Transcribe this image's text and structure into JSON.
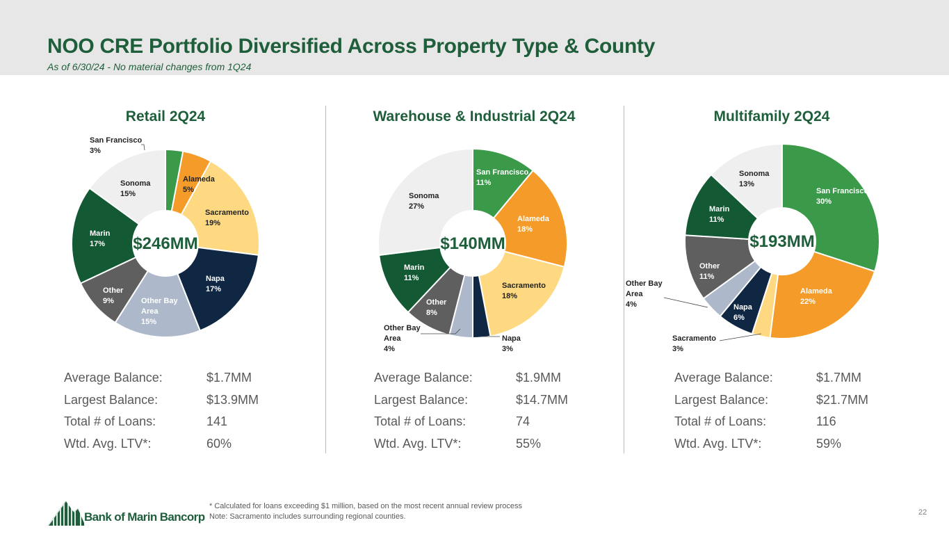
{
  "header": {
    "title": "NOO CRE Portfolio Diversified Across Property Type & County",
    "subtitle": "As of 6/30/24 - No material changes from 1Q24"
  },
  "colors": {
    "San Francisco": "#3a9a49",
    "Alameda": "#f59b29",
    "Sacramento": "#fed982",
    "Napa": "#0f2743",
    "Other Bay Area": "#adb9ca",
    "Other": "#5f5f5f",
    "Marin": "#135a34",
    "Sonoma": "#efefef",
    "title_green": "#1e5e3a"
  },
  "chart_data": [
    {
      "type": "pie",
      "title": "Retail 2Q24",
      "center_label": "$246MM",
      "slices": [
        {
          "name": "San Francisco",
          "value": 3,
          "label": "3%"
        },
        {
          "name": "Alameda",
          "value": 5,
          "label": "5%"
        },
        {
          "name": "Sacramento",
          "value": 19,
          "label": "19%"
        },
        {
          "name": "Napa",
          "value": 17,
          "label": "17%"
        },
        {
          "name": "Other Bay Area",
          "value": 15,
          "label": "15%"
        },
        {
          "name": "Other",
          "value": 9,
          "label": "9%"
        },
        {
          "name": "Marin",
          "value": 17,
          "label": "17%"
        },
        {
          "name": "Sonoma",
          "value": 15,
          "label": "15%"
        }
      ]
    },
    {
      "type": "pie",
      "title": "Warehouse & Industrial 2Q24",
      "center_label": "$140MM",
      "slices": [
        {
          "name": "San Francisco",
          "value": 11,
          "label": "11%"
        },
        {
          "name": "Alameda",
          "value": 18,
          "label": "18%"
        },
        {
          "name": "Sacramento",
          "value": 18,
          "label": "18%"
        },
        {
          "name": "Napa",
          "value": 3,
          "label": "3%"
        },
        {
          "name": "Other Bay Area",
          "value": 4,
          "label": "4%"
        },
        {
          "name": "Other",
          "value": 8,
          "label": "8%"
        },
        {
          "name": "Marin",
          "value": 11,
          "label": "11%"
        },
        {
          "name": "Sonoma",
          "value": 27,
          "label": "27%"
        }
      ]
    },
    {
      "type": "pie",
      "title": "Multifamily 2Q24",
      "center_label": "$193MM",
      "slices": [
        {
          "name": "San Francisco",
          "value": 30,
          "label": "30%"
        },
        {
          "name": "Alameda",
          "value": 22,
          "label": "22%"
        },
        {
          "name": "Sacramento",
          "value": 3,
          "label": "3%"
        },
        {
          "name": "Napa",
          "value": 6,
          "label": "6%"
        },
        {
          "name": "Other Bay Area",
          "value": 4,
          "label": "4%"
        },
        {
          "name": "Other",
          "value": 11,
          "label": "11%"
        },
        {
          "name": "Marin",
          "value": 11,
          "label": "11%"
        },
        {
          "name": "Sonoma",
          "value": 13,
          "label": "13%"
        }
      ]
    }
  ],
  "stats": [
    {
      "labels": [
        "Average Balance:",
        "Largest Balance:",
        "Total # of Loans:",
        "Wtd. Avg. LTV*:"
      ],
      "values": [
        "$1.7MM",
        "$13.9MM",
        "141",
        "60%"
      ]
    },
    {
      "labels": [
        "Average Balance:",
        "Largest Balance:",
        "Total # of Loans:",
        "Wtd. Avg. LTV*:"
      ],
      "values": [
        "$1.9MM",
        "$14.7MM",
        "74",
        "55%"
      ]
    },
    {
      "labels": [
        "Average Balance:",
        "Largest Balance:",
        "Total # of Loans:",
        "Wtd. Avg. LTV*:"
      ],
      "values": [
        "$1.7MM",
        "$21.7MM",
        "116",
        "59%"
      ]
    }
  ],
  "footnote": {
    "line1": "* Calculated for loans exceeding $1 million, based on the most recent annual review process",
    "line2": "Note: Sacramento includes surrounding regional counties."
  },
  "page_number": "22",
  "logo": {
    "text": "Bank of Marin Bancorp"
  }
}
